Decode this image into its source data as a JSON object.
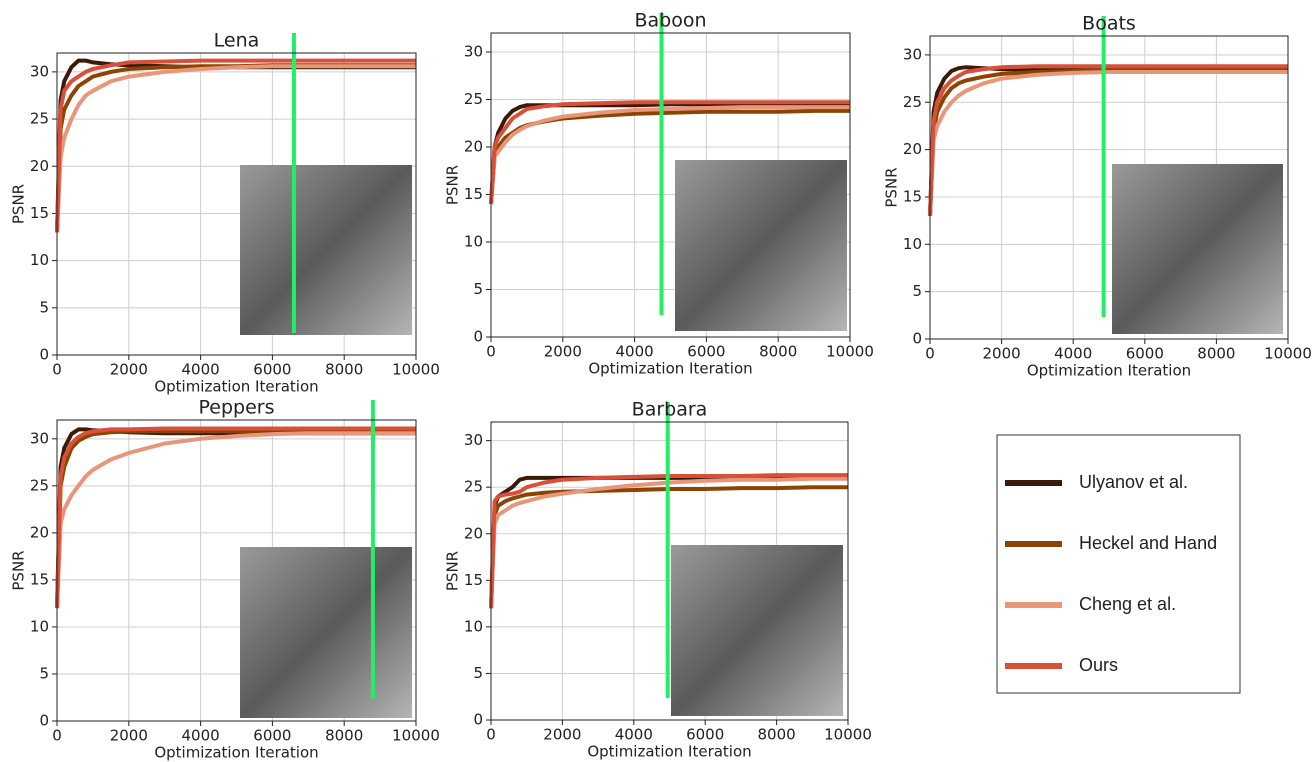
{
  "chart_data": [
    {
      "type": "line",
      "title": "Lena",
      "xlabel": "Optimization Iteration",
      "ylabel": "PSNR",
      "x": [
        0,
        100,
        200,
        400,
        600,
        800,
        1000,
        1500,
        2000,
        3000,
        4000,
        5000,
        6000,
        7000,
        8000,
        9000,
        10000
      ],
      "series": [
        {
          "name": "Ulyanov et al.",
          "color": "#3b1a08",
          "values": [
            13,
            27,
            29,
            30.5,
            31.2,
            31.2,
            31,
            30.8,
            30.7,
            30.6,
            30.5,
            30.5,
            30.5,
            30.5,
            30.5,
            30.5,
            30.5
          ]
        },
        {
          "name": "Heckel and Hand",
          "color": "#8b4500",
          "values": [
            13,
            24,
            26,
            27.5,
            28.5,
            29,
            29.5,
            30,
            30.3,
            30.5,
            30.6,
            30.6,
            30.7,
            30.7,
            30.7,
            30.7,
            30.7
          ]
        },
        {
          "name": "Cheng et al.",
          "color": "#e8967a",
          "values": [
            13,
            21,
            23,
            25,
            26.5,
            27.5,
            28,
            29,
            29.5,
            30,
            30.3,
            30.5,
            30.6,
            30.6,
            30.6,
            30.6,
            30.6
          ]
        },
        {
          "name": "Ours",
          "color": "#d9503a",
          "values": [
            13,
            26,
            28,
            29,
            29.5,
            30,
            30.3,
            30.7,
            31,
            31.1,
            31.2,
            31.2,
            31.2,
            31.2,
            31.2,
            31.2,
            31.2
          ]
        }
      ],
      "vline_x": 6600,
      "vline_color": "#22ee66",
      "xlim": [
        0,
        10000
      ],
      "ylim": [
        0,
        32
      ],
      "xticks": [
        0,
        2000,
        4000,
        6000,
        8000,
        10000
      ],
      "yticks": [
        0,
        5,
        10,
        15,
        20,
        25,
        30
      ],
      "grid": true
    },
    {
      "type": "line",
      "title": "Baboon",
      "xlabel": "Optimization Iteration",
      "ylabel": "PSNR",
      "x": [
        0,
        100,
        200,
        400,
        600,
        800,
        1000,
        1500,
        2000,
        3000,
        4000,
        5000,
        6000,
        7000,
        8000,
        9000,
        10000
      ],
      "series": [
        {
          "color": "#3b1a08",
          "values": [
            14,
            20,
            21.5,
            23,
            23.8,
            24.2,
            24.4,
            24.4,
            24.4,
            24.4,
            24.4,
            24.5,
            24.5,
            24.5,
            24.5,
            24.5,
            24.5
          ]
        },
        {
          "color": "#8b4500",
          "values": [
            14,
            19,
            20,
            21,
            21.5,
            22,
            22.3,
            22.7,
            23,
            23.3,
            23.5,
            23.6,
            23.7,
            23.7,
            23.7,
            23.8,
            23.8
          ]
        },
        {
          "color": "#e8967a",
          "values": [
            14,
            19,
            19.5,
            20.5,
            21.3,
            21.8,
            22.2,
            22.8,
            23.2,
            23.6,
            23.9,
            24,
            24.1,
            24.2,
            24.2,
            24.2,
            24.2
          ]
        },
        {
          "color": "#d9503a",
          "values": [
            14,
            20,
            21,
            22,
            23,
            23.5,
            24,
            24.3,
            24.5,
            24.6,
            24.7,
            24.7,
            24.7,
            24.7,
            24.7,
            24.7,
            24.7
          ]
        }
      ],
      "vline_x": 4750,
      "vline_color": "#22ee66",
      "xlim": [
        0,
        10000
      ],
      "ylim": [
        0,
        32
      ],
      "xticks": [
        0,
        2000,
        4000,
        6000,
        8000,
        10000
      ],
      "yticks": [
        0,
        5,
        10,
        15,
        20,
        25,
        30
      ],
      "grid": true
    },
    {
      "type": "line",
      "title": "Boats",
      "xlabel": "Optimization Iteration",
      "ylabel": "PSNR",
      "x": [
        0,
        100,
        200,
        400,
        600,
        800,
        1000,
        1500,
        2000,
        3000,
        4000,
        5000,
        6000,
        7000,
        8000,
        9000,
        10000
      ],
      "series": [
        {
          "color": "#3b1a08",
          "values": [
            13,
            24,
            26,
            27.5,
            28.3,
            28.6,
            28.7,
            28.6,
            28.5,
            28.4,
            28.4,
            28.4,
            28.4,
            28.4,
            28.4,
            28.4,
            28.4
          ]
        },
        {
          "color": "#8b4500",
          "values": [
            13,
            22,
            24,
            25.5,
            26.5,
            27,
            27.3,
            27.7,
            28,
            28.2,
            28.3,
            28.4,
            28.4,
            28.4,
            28.4,
            28.4,
            28.4
          ]
        },
        {
          "color": "#e8967a",
          "values": [
            13,
            21,
            22.5,
            24,
            25,
            25.7,
            26.2,
            27,
            27.5,
            27.9,
            28.1,
            28.2,
            28.2,
            28.2,
            28.2,
            28.2,
            28.2
          ]
        },
        {
          "color": "#d9503a",
          "values": [
            13,
            23,
            25,
            26.5,
            27.3,
            27.8,
            28.2,
            28.5,
            28.7,
            28.8,
            28.8,
            28.8,
            28.8,
            28.8,
            28.8,
            28.8,
            28.8
          ]
        }
      ],
      "vline_x": 4850,
      "vline_color": "#22ee66",
      "xlim": [
        0,
        10000
      ],
      "ylim": [
        0,
        32
      ],
      "xticks": [
        0,
        2000,
        4000,
        6000,
        8000,
        10000
      ],
      "yticks": [
        0,
        5,
        10,
        15,
        20,
        25,
        30
      ],
      "grid": true
    },
    {
      "type": "line",
      "title": "Peppers",
      "xlabel": "Optimization Iteration",
      "ylabel": "PSNR",
      "x": [
        0,
        100,
        200,
        400,
        600,
        800,
        1000,
        1500,
        2000,
        3000,
        4000,
        5000,
        6000,
        7000,
        8000,
        9000,
        10000
      ],
      "series": [
        {
          "color": "#3b1a08",
          "values": [
            12,
            27,
            29,
            30.5,
            31,
            31,
            30.9,
            30.8,
            30.7,
            30.6,
            30.6,
            30.6,
            30.6,
            30.6,
            30.6,
            30.6,
            30.6
          ]
        },
        {
          "color": "#8b4500",
          "values": [
            12,
            25,
            27,
            29,
            29.8,
            30.2,
            30.5,
            30.7,
            30.8,
            30.8,
            30.8,
            30.8,
            30.8,
            30.8,
            30.8,
            30.8,
            30.8
          ]
        },
        {
          "color": "#e8967a",
          "values": [
            12,
            21,
            22.5,
            24,
            25,
            26,
            26.7,
            27.8,
            28.5,
            29.5,
            30,
            30.3,
            30.5,
            30.6,
            30.6,
            30.6,
            30.6
          ]
        },
        {
          "color": "#d9503a",
          "values": [
            12,
            26,
            28,
            29.5,
            30.2,
            30.6,
            30.8,
            31,
            31,
            31.1,
            31.1,
            31.1,
            31.1,
            31.1,
            31.1,
            31.1,
            31.1
          ]
        }
      ],
      "vline_x": 8800,
      "vline_color": "#22ee66",
      "xlim": [
        0,
        10000
      ],
      "ylim": [
        0,
        32
      ],
      "xticks": [
        0,
        2000,
        4000,
        6000,
        8000,
        10000
      ],
      "yticks": [
        0,
        5,
        10,
        15,
        20,
        25,
        30
      ],
      "grid": true
    },
    {
      "type": "line",
      "title": "Barbara",
      "xlabel": "Optimization Iteration",
      "ylabel": "PSNR",
      "x": [
        0,
        100,
        200,
        400,
        600,
        800,
        1000,
        1500,
        2000,
        3000,
        4000,
        5000,
        6000,
        7000,
        8000,
        9000,
        10000
      ],
      "series": [
        {
          "color": "#3b1a08",
          "values": [
            12,
            23,
            24,
            24.5,
            25,
            25.8,
            26,
            26,
            26,
            26,
            26,
            26,
            26,
            26,
            26,
            26,
            26
          ]
        },
        {
          "color": "#8b4500",
          "values": [
            12,
            22,
            23,
            23.5,
            23.8,
            24,
            24.2,
            24.4,
            24.5,
            24.6,
            24.7,
            24.8,
            24.8,
            24.9,
            24.9,
            25,
            25
          ]
        },
        {
          "color": "#e8967a",
          "values": [
            12,
            21,
            22,
            22.5,
            23,
            23.3,
            23.5,
            24,
            24.3,
            24.8,
            25.2,
            25.5,
            25.7,
            25.8,
            25.8,
            25.9,
            25.9
          ]
        },
        {
          "color": "#d9503a",
          "values": [
            12,
            23.5,
            24,
            24.2,
            24.3,
            24.5,
            25,
            25.5,
            25.8,
            26,
            26.1,
            26.2,
            26.2,
            26.2,
            26.3,
            26.3,
            26.3
          ]
        }
      ],
      "vline_x": 4950,
      "vline_color": "#22ee66",
      "xlim": [
        0,
        10000
      ],
      "ylim": [
        0,
        32
      ],
      "xticks": [
        0,
        2000,
        4000,
        6000,
        8000,
        10000
      ],
      "yticks": [
        0,
        5,
        10,
        15,
        20,
        25,
        30
      ],
      "grid": true
    }
  ]
}
